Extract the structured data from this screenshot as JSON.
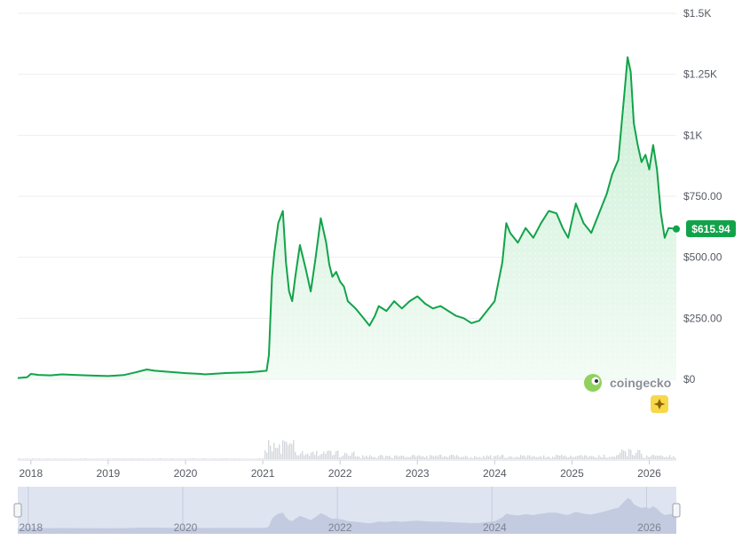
{
  "brand": {
    "name": "coingecko"
  },
  "current_price_label": "$615.94",
  "colors": {
    "line": "#12a34a",
    "area_top": "#c9efd4",
    "area_bottom": "#f3fbf5",
    "grid": "#eceef1",
    "volume": "#d4d7dd",
    "navigator_bg": "#dfe4f1",
    "navigator_area": "#c3cbe0",
    "badge": "#12a34a",
    "ai_button": "#f8d84b"
  },
  "icons": {
    "ai_button": "sparkle-icon",
    "brand_logo": "gecko-icon"
  },
  "chart_data": {
    "type": "line",
    "title": "",
    "xlabel": "",
    "ylabel": "",
    "ylim": [
      0,
      1500
    ],
    "y_ticks": [
      {
        "value": 1500,
        "label": "$1.5K"
      },
      {
        "value": 1250,
        "label": "$1.25K"
      },
      {
        "value": 1000,
        "label": "$1K"
      },
      {
        "value": 750,
        "label": "$750.00"
      },
      {
        "value": 500,
        "label": "$500.00"
      },
      {
        "value": 250,
        "label": "$250.00"
      },
      {
        "value": 0,
        "label": "$0"
      }
    ],
    "xlim": [
      2017.83,
      2026.35
    ],
    "x_ticks": [
      {
        "value": 2018,
        "label": "2018"
      },
      {
        "value": 2019,
        "label": "2019"
      },
      {
        "value": 2020,
        "label": "2020"
      },
      {
        "value": 2021,
        "label": "2021"
      },
      {
        "value": 2022,
        "label": "2022"
      },
      {
        "value": 2023,
        "label": "2023"
      },
      {
        "value": 2024,
        "label": "2024"
      },
      {
        "value": 2025,
        "label": "2025"
      },
      {
        "value": 2026,
        "label": "2026"
      }
    ],
    "navigator_ticks": [
      {
        "value": 2018,
        "label": "2018"
      },
      {
        "value": 2020,
        "label": "2020"
      },
      {
        "value": 2022,
        "label": "2022"
      },
      {
        "value": 2024,
        "label": "2024"
      },
      {
        "value": 2026,
        "label": "2026"
      }
    ],
    "grid": true,
    "legend": "none",
    "series": [
      {
        "x": [
          2017.83,
          2017.95,
          2018.0,
          2018.1,
          2018.25,
          2018.4,
          2018.6,
          2018.8,
          2019.0,
          2019.2,
          2019.35,
          2019.5,
          2019.6,
          2019.8,
          2020.0,
          2020.2,
          2020.25,
          2020.5,
          2020.8,
          2020.95,
          2021.05,
          2021.08,
          2021.12,
          2021.15,
          2021.2,
          2021.26,
          2021.3,
          2021.34,
          2021.38,
          2021.42,
          2021.48,
          2021.55,
          2021.62,
          2021.68,
          2021.75,
          2021.82,
          2021.86,
          2021.9,
          2021.95,
          2022.0,
          2022.05,
          2022.1,
          2022.2,
          2022.28,
          2022.38,
          2022.45,
          2022.5,
          2022.6,
          2022.7,
          2022.8,
          2022.9,
          2023.0,
          2023.1,
          2023.2,
          2023.3,
          2023.4,
          2023.5,
          2023.6,
          2023.7,
          2023.8,
          2023.9,
          2024.0,
          2024.1,
          2024.15,
          2024.2,
          2024.3,
          2024.4,
          2024.5,
          2024.6,
          2024.7,
          2024.8,
          2024.88,
          2024.95,
          2025.05,
          2025.15,
          2025.25,
          2025.35,
          2025.45,
          2025.52,
          2025.6,
          2025.68,
          2025.72,
          2025.76,
          2025.8,
          2025.85,
          2025.9,
          2025.95,
          2026.0,
          2026.05,
          2026.1,
          2026.15,
          2026.2,
          2026.25,
          2026.35
        ],
        "values": [
          5,
          8,
          22,
          18,
          16,
          20,
          17,
          15,
          13,
          17,
          28,
          40,
          35,
          30,
          25,
          22,
          20,
          25,
          28,
          32,
          35,
          100,
          420,
          520,
          640,
          690,
          480,
          360,
          320,
          420,
          550,
          460,
          360,
          490,
          660,
          560,
          470,
          420,
          440,
          400,
          380,
          320,
          290,
          260,
          220,
          260,
          300,
          280,
          320,
          290,
          320,
          340,
          310,
          290,
          300,
          280,
          260,
          250,
          230,
          240,
          280,
          320,
          480,
          640,
          600,
          560,
          620,
          580,
          640,
          690,
          680,
          620,
          580,
          720,
          640,
          600,
          680,
          760,
          840,
          900,
          1180,
          1320,
          1260,
          1050,
          960,
          890,
          920,
          860,
          960,
          860,
          680,
          580,
          620,
          616
        ]
      }
    ]
  }
}
